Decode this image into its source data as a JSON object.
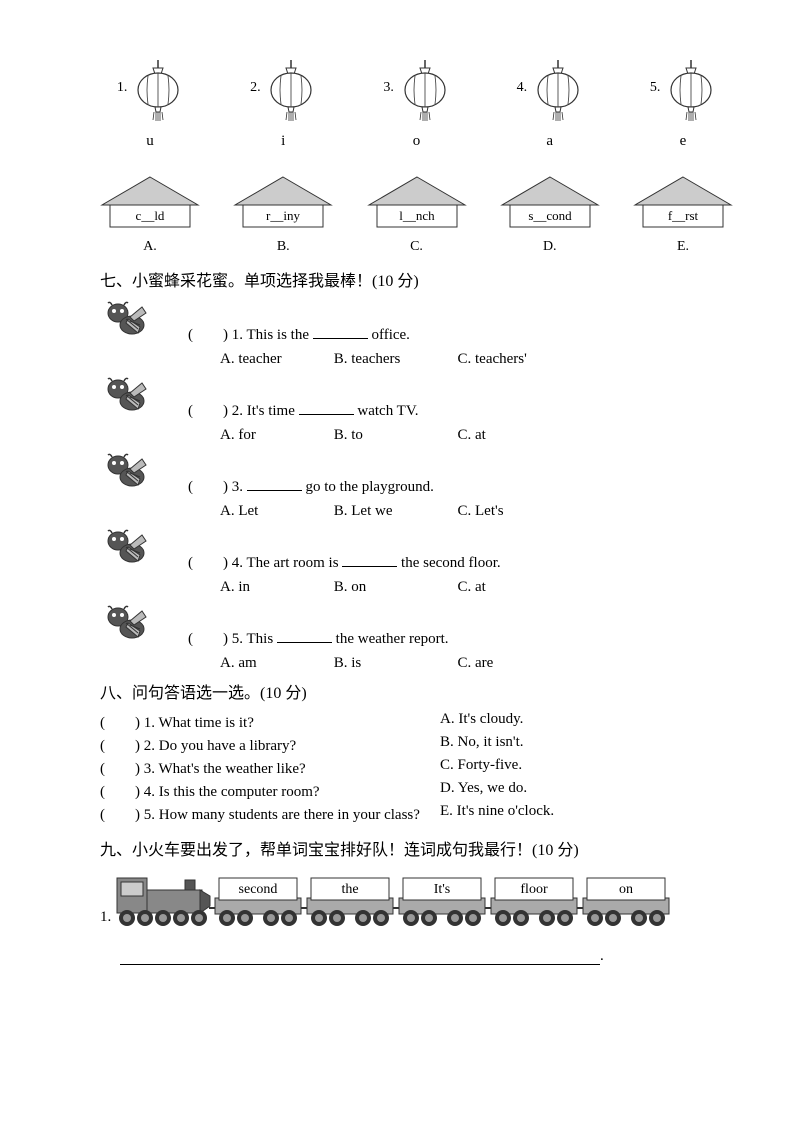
{
  "section6": {
    "lanterns": [
      {
        "num": "1.",
        "letter": "u"
      },
      {
        "num": "2.",
        "letter": "i"
      },
      {
        "num": "3.",
        "letter": "o"
      },
      {
        "num": "4.",
        "letter": "a"
      },
      {
        "num": "5.",
        "letter": "e"
      }
    ],
    "houses": [
      {
        "word": "c__ld",
        "letter": "A."
      },
      {
        "word": "r__iny",
        "letter": "B."
      },
      {
        "word": "l__nch",
        "letter": "C."
      },
      {
        "word": "s__cond",
        "letter": "D."
      },
      {
        "word": "f__rst",
        "letter": "E."
      }
    ],
    "lantern_stroke": "#333333",
    "lantern_fill": "#ffffff",
    "house_roof_fill": "#cccccc",
    "house_stroke": "#333333",
    "house_body_fill": "#ffffff"
  },
  "section7": {
    "title": "七、小蜜蜂采花蜜。单项选择我最棒！(10 分)",
    "questions": [
      {
        "num": "(　　) 1.",
        "stem_a": "This is the ",
        "stem_b": " office.",
        "opts": {
          "a": "A. teacher",
          "b": "B. teachers",
          "c": "C. teachers'"
        }
      },
      {
        "num": "(　　) 2.",
        "stem_a": "It's time ",
        "stem_b": " watch TV.",
        "opts": {
          "a": "A. for",
          "b": "B. to",
          "c": "C. at"
        }
      },
      {
        "num": "(　　) 3.",
        "stem_a": "",
        "stem_b": " go to the playground.",
        "opts": {
          "a": "A. Let",
          "b": "B. Let we",
          "c": "C. Let's"
        }
      },
      {
        "num": "(　　) 4.",
        "stem_a": "The art room is ",
        "stem_b": " the second floor.",
        "opts": {
          "a": "A. in",
          "b": "B. on",
          "c": "C. at"
        }
      },
      {
        "num": "(　　) 5.",
        "stem_a": "This ",
        "stem_b": " the weather report.",
        "opts": {
          "a": "A. am",
          "b": "B. is",
          "c": "C. are"
        }
      }
    ],
    "bee_colors": {
      "body": "#555555",
      "wing": "#bbbbbb",
      "line": "#333333"
    }
  },
  "section8": {
    "title": "八、问句答语选一选。(10 分)",
    "rows": [
      {
        "q": "(　　) 1. What time is it?",
        "a": "A. It's cloudy."
      },
      {
        "q": "(　　) 2. Do you have a library?",
        "a": "B. No, it isn't."
      },
      {
        "q": "(　　) 3. What's the weather like?",
        "a": "C. Forty-five."
      },
      {
        "q": "(　　) 4. Is this the computer room?",
        "a": "D. Yes, we do."
      },
      {
        "q": "(　　) 5. How many students are there in your class?",
        "a": "E. It's nine o'clock."
      }
    ]
  },
  "section9": {
    "title": "九、小火车要出发了，帮单词宝宝排好队！连词成句我最行！(10 分)",
    "num": "1.",
    "words": [
      "second",
      "the",
      "It's",
      "floor",
      "on"
    ],
    "train_colors": {
      "engine_body": "#888888",
      "engine_dark": "#555555",
      "wheel": "#333333",
      "wheel_inner": "#999999",
      "car_body": "#aaaaaa",
      "car_top": "#ffffff",
      "car_border": "#333333"
    },
    "period": "."
  }
}
